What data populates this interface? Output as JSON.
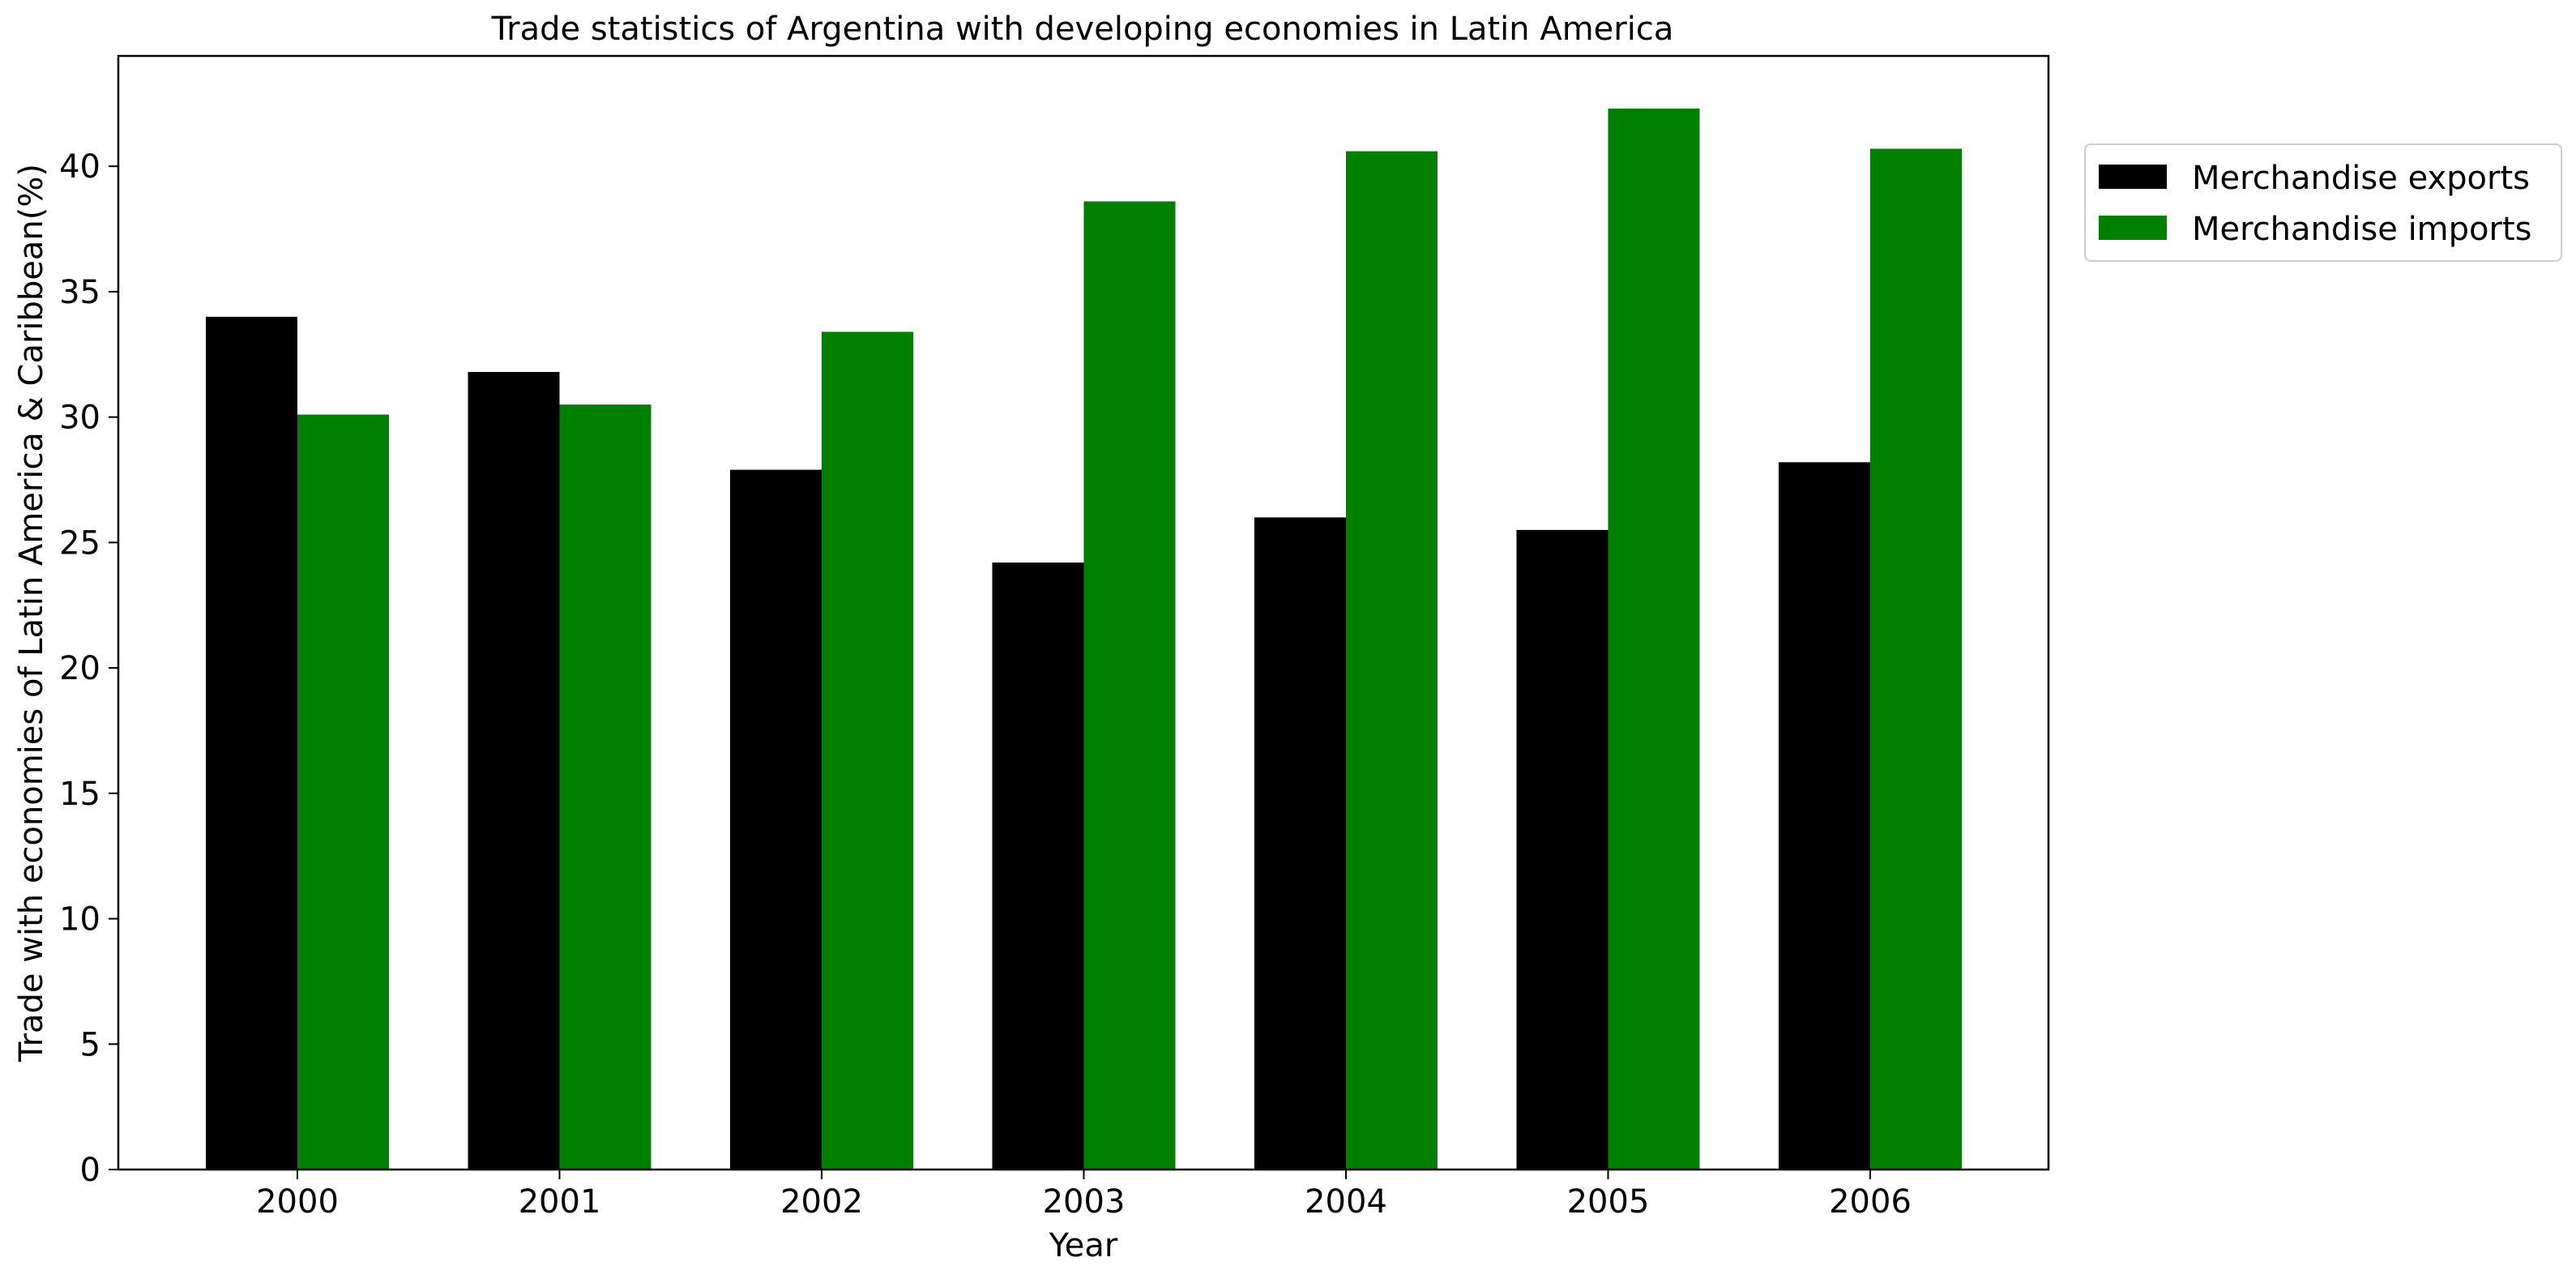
{
  "chart_data": {
    "type": "bar",
    "title": "Trade statistics of Argentina with developing economies in Latin America",
    "xlabel": "Year",
    "ylabel": "Trade with economies of Latin America & Caribbean(%)",
    "categories": [
      "2000",
      "2001",
      "2002",
      "2003",
      "2004",
      "2005",
      "2006"
    ],
    "series": [
      {
        "name": "Merchandise exports",
        "color": "#000000",
        "values": [
          34.0,
          31.8,
          27.9,
          24.2,
          26.0,
          25.5,
          28.2
        ]
      },
      {
        "name": "Merchandise imports",
        "color": "#008000",
        "values": [
          30.1,
          30.5,
          33.4,
          38.6,
          40.6,
          42.3,
          40.7
        ]
      }
    ],
    "yticks": [
      0,
      5,
      10,
      15,
      20,
      25,
      30,
      35,
      40
    ],
    "ylim": [
      0,
      44.4
    ],
    "grid": false,
    "legend_position": "outside-top-right"
  }
}
